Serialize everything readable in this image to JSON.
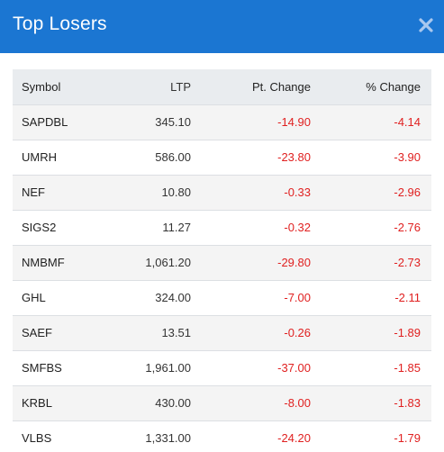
{
  "modal": {
    "title": "Top Losers",
    "close_icon": "close-icon",
    "close_color": "#a9c8ef",
    "header_color": "#1b76d2"
  },
  "table": {
    "headers": {
      "symbol": "Symbol",
      "ltp": "LTP",
      "pt_change": "Pt. Change",
      "pct_change": "% Change"
    },
    "negative_color": "#e02020",
    "rows": [
      {
        "symbol": "SAPDBL",
        "ltp": "345.10",
        "pt_change": "-14.90",
        "pct_change": "-4.14"
      },
      {
        "symbol": "UMRH",
        "ltp": "586.00",
        "pt_change": "-23.80",
        "pct_change": "-3.90"
      },
      {
        "symbol": "NEF",
        "ltp": "10.80",
        "pt_change": "-0.33",
        "pct_change": "-2.96"
      },
      {
        "symbol": "SIGS2",
        "ltp": "11.27",
        "pt_change": "-0.32",
        "pct_change": "-2.76"
      },
      {
        "symbol": "NMBMF",
        "ltp": "1,061.20",
        "pt_change": "-29.80",
        "pct_change": "-2.73"
      },
      {
        "symbol": "GHL",
        "ltp": "324.00",
        "pt_change": "-7.00",
        "pct_change": "-2.11"
      },
      {
        "symbol": "SAEF",
        "ltp": "13.51",
        "pt_change": "-0.26",
        "pct_change": "-1.89"
      },
      {
        "symbol": "SMFBS",
        "ltp": "1,961.00",
        "pt_change": "-37.00",
        "pct_change": "-1.85"
      },
      {
        "symbol": "KRBL",
        "ltp": "430.00",
        "pt_change": "-8.00",
        "pct_change": "-1.83"
      },
      {
        "symbol": "VLBS",
        "ltp": "1,331.00",
        "pt_change": "-24.20",
        "pct_change": "-1.79"
      }
    ]
  }
}
